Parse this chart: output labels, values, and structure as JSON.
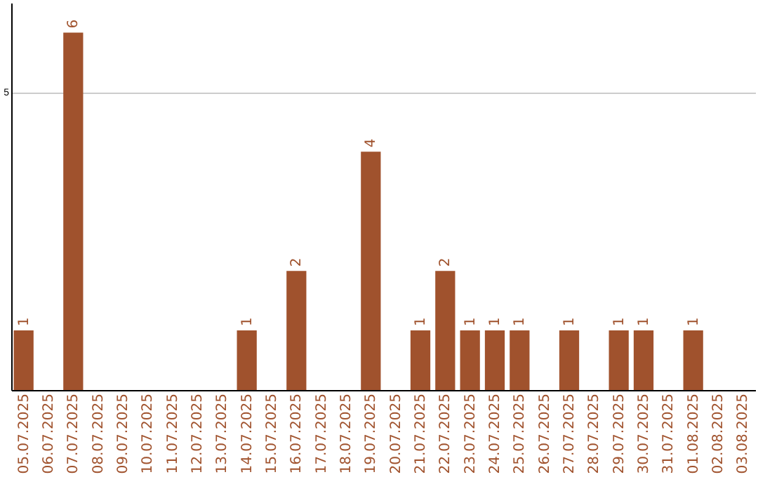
{
  "chart_data": {
    "type": "bar",
    "categories": [
      "05.07.2025",
      "06.07.2025",
      "07.07.2025",
      "08.07.2025",
      "09.07.2025",
      "10.07.2025",
      "11.07.2025",
      "12.07.2025",
      "13.07.2025",
      "14.07.2025",
      "15.07.2025",
      "16.07.2025",
      "17.07.2025",
      "18.07.2025",
      "19.07.2025",
      "20.07.2025",
      "21.07.2025",
      "22.07.2025",
      "23.07.2025",
      "24.07.2025",
      "25.07.2025",
      "26.07.2025",
      "27.07.2025",
      "28.07.2025",
      "29.07.2025",
      "30.07.2025",
      "31.07.2025",
      "01.08.2025",
      "02.08.2025",
      "03.08.2025"
    ],
    "values": [
      1,
      0,
      6,
      0,
      0,
      0,
      0,
      0,
      0,
      1,
      0,
      2,
      0,
      0,
      4,
      0,
      1,
      2,
      1,
      1,
      1,
      0,
      1,
      0,
      1,
      1,
      0,
      1,
      0,
      0
    ],
    "value_labels": [
      "1",
      null,
      "6",
      null,
      null,
      null,
      null,
      null,
      null,
      "1",
      null,
      "2",
      null,
      null,
      "4",
      null,
      "1",
      "2",
      "1",
      "1",
      "1",
      null,
      "1",
      null,
      "1",
      "1",
      null,
      "1",
      null,
      null
    ],
    "color": "#a0522d",
    "ylim": [
      0,
      6.5
    ],
    "yticks": [
      5
    ],
    "grid": "y"
  }
}
